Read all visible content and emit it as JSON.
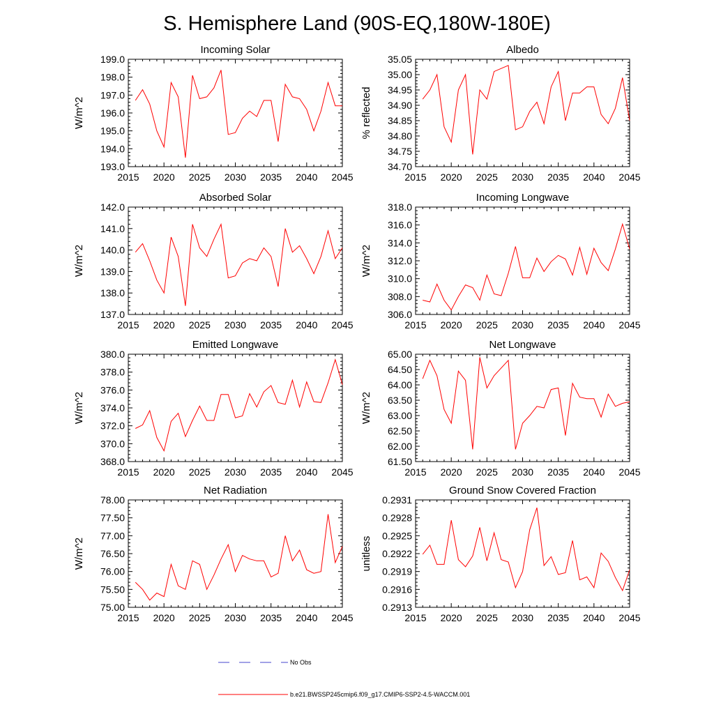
{
  "page": {
    "title": "S. Hemisphere Land (90S-EQ,180W-180E)",
    "line_color": "#ff0000",
    "obs_color": "#4444cc"
  },
  "legend": {
    "items": [
      {
        "label": "No Obs",
        "style": "dashed",
        "color": "#4444cc"
      },
      {
        "label": "b.e21.BWSSP245cmip6.f09_g17.CMIP6-SSP2-4.5-WACCM.001",
        "style": "solid",
        "color": "#ff0000"
      }
    ]
  },
  "chart_data": [
    {
      "type": "line",
      "title": "Incoming Solar",
      "xlabel": "",
      "ylabel": "W/m^2",
      "xlim": [
        2015,
        2045
      ],
      "ylim": [
        193.0,
        199.0
      ],
      "xticks": [
        2015,
        2020,
        2025,
        2030,
        2035,
        2040,
        2045
      ],
      "xtick_labels": [
        "2015",
        "2020",
        "2025",
        "2030",
        "2035",
        "2040",
        "2045"
      ],
      "yticks": [
        193,
        194,
        195,
        196,
        197,
        198,
        199
      ],
      "ytick_labels": [
        "193.0",
        "194.0",
        "195.0",
        "196.0",
        "197.0",
        "198.0",
        "199.0"
      ],
      "series": [
        {
          "name": "b.e21.BWSSP245cmip6.f09_g17.CMIP6-SSP2-4.5-WACCM.001",
          "x": [
            2016,
            2017,
            2018,
            2019,
            2020,
            2021,
            2022,
            2023,
            2024,
            2025,
            2026,
            2027,
            2028,
            2029,
            2030,
            2031,
            2032,
            2033,
            2034,
            2035,
            2036,
            2037,
            2038,
            2039,
            2040,
            2041,
            2042,
            2043,
            2044,
            2045
          ],
          "y": [
            196.7,
            197.3,
            196.5,
            195.0,
            194.1,
            197.7,
            196.9,
            193.5,
            198.1,
            196.8,
            196.9,
            197.4,
            198.4,
            194.8,
            194.9,
            195.7,
            196.1,
            195.8,
            196.7,
            196.7,
            194.4,
            197.6,
            196.9,
            196.8,
            196.2,
            195.0,
            196.1,
            197.7,
            196.4,
            196.4
          ]
        }
      ]
    },
    {
      "type": "line",
      "title": "Albedo",
      "xlabel": "",
      "ylabel": "% reflected",
      "xlim": [
        2015,
        2045
      ],
      "ylim": [
        34.7,
        35.05
      ],
      "xticks": [
        2015,
        2020,
        2025,
        2030,
        2035,
        2040,
        2045
      ],
      "xtick_labels": [
        "2015",
        "2020",
        "2025",
        "2030",
        "2035",
        "2040",
        "2045"
      ],
      "yticks": [
        34.7,
        34.75,
        34.8,
        34.85,
        34.9,
        34.95,
        35.0,
        35.05
      ],
      "ytick_labels": [
        "34.70",
        "34.75",
        "34.80",
        "34.85",
        "34.90",
        "34.95",
        "35.00",
        "35.05"
      ],
      "series": [
        {
          "name": "b.e21.BWSSP245cmip6.f09_g17.CMIP6-SSP2-4.5-WACCM.001",
          "x": [
            2016,
            2017,
            2018,
            2019,
            2020,
            2021,
            2022,
            2023,
            2024,
            2025,
            2026,
            2027,
            2028,
            2029,
            2030,
            2031,
            2032,
            2033,
            2034,
            2035,
            2036,
            2037,
            2038,
            2039,
            2040,
            2041,
            2042,
            2043,
            2044,
            2045
          ],
          "y": [
            34.92,
            34.95,
            35.0,
            34.83,
            34.78,
            34.95,
            35.0,
            34.74,
            34.95,
            34.92,
            35.01,
            35.02,
            35.03,
            34.82,
            34.83,
            34.88,
            34.91,
            34.84,
            34.96,
            35.01,
            34.85,
            34.94,
            34.94,
            34.96,
            34.96,
            34.87,
            34.84,
            34.89,
            34.99,
            34.85
          ]
        }
      ]
    },
    {
      "type": "line",
      "title": "Absorbed Solar",
      "xlabel": "",
      "ylabel": "W/m^2",
      "xlim": [
        2015,
        2045
      ],
      "ylim": [
        137.0,
        142.0
      ],
      "xticks": [
        2015,
        2020,
        2025,
        2030,
        2035,
        2040,
        2045
      ],
      "xtick_labels": [
        "2015",
        "2020",
        "2025",
        "2030",
        "2035",
        "2040",
        "2045"
      ],
      "yticks": [
        137,
        138,
        139,
        140,
        141,
        142
      ],
      "ytick_labels": [
        "137.0",
        "138.0",
        "139.0",
        "140.0",
        "141.0",
        "142.0"
      ],
      "series": [
        {
          "name": "b.e21.BWSSP245cmip6.f09_g17.CMIP6-SSP2-4.5-WACCM.001",
          "x": [
            2016,
            2017,
            2018,
            2019,
            2020,
            2021,
            2022,
            2023,
            2024,
            2025,
            2026,
            2027,
            2028,
            2029,
            2030,
            2031,
            2032,
            2033,
            2034,
            2035,
            2036,
            2037,
            2038,
            2039,
            2040,
            2041,
            2042,
            2043,
            2044,
            2045
          ],
          "y": [
            139.9,
            140.3,
            139.5,
            138.6,
            138.0,
            140.6,
            139.7,
            137.4,
            141.2,
            140.1,
            139.7,
            140.5,
            141.2,
            138.7,
            138.8,
            139.4,
            139.6,
            139.5,
            140.1,
            139.7,
            138.3,
            141.0,
            139.9,
            140.2,
            139.6,
            138.9,
            139.7,
            140.9,
            139.6,
            140.1
          ]
        }
      ]
    },
    {
      "type": "line",
      "title": "Incoming Longwave",
      "xlabel": "",
      "ylabel": "W/m^2",
      "xlim": [
        2015,
        2045
      ],
      "ylim": [
        306.0,
        318.0
      ],
      "xticks": [
        2015,
        2020,
        2025,
        2030,
        2035,
        2040,
        2045
      ],
      "xtick_labels": [
        "2015",
        "2020",
        "2025",
        "2030",
        "2035",
        "2040",
        "2045"
      ],
      "yticks": [
        306,
        308,
        310,
        312,
        314,
        316,
        318
      ],
      "ytick_labels": [
        "306.0",
        "308.0",
        "310.0",
        "312.0",
        "314.0",
        "316.0",
        "318.0"
      ],
      "series": [
        {
          "name": "b.e21.BWSSP245cmip6.f09_g17.CMIP6-SSP2-4.5-WACCM.001",
          "x": [
            2016,
            2017,
            2018,
            2019,
            2020,
            2021,
            2022,
            2023,
            2024,
            2025,
            2026,
            2027,
            2028,
            2029,
            2030,
            2031,
            2032,
            2033,
            2034,
            2035,
            2036,
            2037,
            2038,
            2039,
            2040,
            2041,
            2042,
            2043,
            2044,
            2045
          ],
          "y": [
            307.6,
            307.4,
            309.4,
            307.6,
            306.5,
            308.0,
            309.3,
            309.0,
            307.6,
            310.4,
            308.3,
            308.1,
            310.6,
            313.6,
            310.1,
            310.1,
            312.3,
            310.8,
            311.9,
            312.6,
            312.2,
            310.4,
            313.5,
            310.5,
            313.4,
            311.8,
            310.9,
            313.3,
            316.1,
            313.3
          ]
        }
      ]
    },
    {
      "type": "line",
      "title": "Emitted Longwave",
      "xlabel": "",
      "ylabel": "W/m^2",
      "xlim": [
        2015,
        2045
      ],
      "ylim": [
        368.0,
        380.0
      ],
      "xticks": [
        2015,
        2020,
        2025,
        2030,
        2035,
        2040,
        2045
      ],
      "xtick_labels": [
        "2015",
        "2020",
        "2025",
        "2030",
        "2035",
        "2040",
        "2045"
      ],
      "yticks": [
        368,
        370,
        372,
        374,
        376,
        378,
        380
      ],
      "ytick_labels": [
        "368.0",
        "370.0",
        "372.0",
        "374.0",
        "376.0",
        "378.0",
        "380.0"
      ],
      "series": [
        {
          "name": "b.e21.BWSSP245cmip6.f09_g17.CMIP6-SSP2-4.5-WACCM.001",
          "x": [
            2016,
            2017,
            2018,
            2019,
            2020,
            2021,
            2022,
            2023,
            2024,
            2025,
            2026,
            2027,
            2028,
            2029,
            2030,
            2031,
            2032,
            2033,
            2034,
            2035,
            2036,
            2037,
            2038,
            2039,
            2040,
            2041,
            2042,
            2043,
            2044,
            2045
          ],
          "y": [
            371.7,
            372.1,
            373.7,
            370.7,
            369.2,
            372.5,
            373.4,
            370.8,
            372.6,
            374.2,
            372.6,
            372.6,
            375.5,
            375.5,
            372.9,
            373.1,
            375.6,
            374.1,
            375.8,
            376.5,
            374.6,
            374.4,
            377.1,
            374.1,
            376.9,
            374.7,
            374.6,
            376.8,
            379.4,
            376.6
          ]
        }
      ]
    },
    {
      "type": "line",
      "title": "Net Longwave",
      "xlabel": "",
      "ylabel": "W/m^2",
      "xlim": [
        2015,
        2045
      ],
      "ylim": [
        61.5,
        65.0
      ],
      "xticks": [
        2015,
        2020,
        2025,
        2030,
        2035,
        2040,
        2045
      ],
      "xtick_labels": [
        "2015",
        "2020",
        "2025",
        "2030",
        "2035",
        "2040",
        "2045"
      ],
      "yticks": [
        61.5,
        62.0,
        62.5,
        63.0,
        63.5,
        64.0,
        64.5,
        65.0
      ],
      "ytick_labels": [
        "61.50",
        "62.00",
        "62.50",
        "63.00",
        "63.50",
        "64.00",
        "64.50",
        "65.00"
      ],
      "series": [
        {
          "name": "b.e21.BWSSP245cmip6.f09_g17.CMIP6-SSP2-4.5-WACCM.001",
          "x": [
            2016,
            2017,
            2018,
            2019,
            2020,
            2021,
            2022,
            2023,
            2024,
            2025,
            2026,
            2027,
            2028,
            2029,
            2030,
            2031,
            2032,
            2033,
            2034,
            2035,
            2036,
            2037,
            2038,
            2039,
            2040,
            2041,
            2042,
            2043,
            2044,
            2045
          ],
          "y": [
            64.2,
            64.8,
            64.3,
            63.2,
            62.75,
            64.45,
            64.15,
            61.9,
            64.9,
            63.9,
            64.3,
            64.55,
            64.8,
            61.9,
            62.75,
            63.0,
            63.3,
            63.25,
            63.85,
            63.9,
            62.35,
            64.05,
            63.6,
            63.55,
            63.55,
            62.95,
            63.7,
            63.3,
            63.4,
            63.45
          ]
        }
      ]
    },
    {
      "type": "line",
      "title": "Net Radiation",
      "xlabel": "",
      "ylabel": "W/m^2",
      "xlim": [
        2015,
        2045
      ],
      "ylim": [
        75.0,
        78.0
      ],
      "xticks": [
        2015,
        2020,
        2025,
        2030,
        2035,
        2040,
        2045
      ],
      "xtick_labels": [
        "2015",
        "2020",
        "2025",
        "2030",
        "2035",
        "2040",
        "2045"
      ],
      "yticks": [
        75.0,
        75.5,
        76.0,
        76.5,
        77.0,
        77.5,
        78.0
      ],
      "ytick_labels": [
        "75.00",
        "75.50",
        "76.00",
        "76.50",
        "77.00",
        "77.50",
        "78.00"
      ],
      "series": [
        {
          "name": "b.e21.BWSSP245cmip6.f09_g17.CMIP6-SSP2-4.5-WACCM.001",
          "x": [
            2016,
            2017,
            2018,
            2019,
            2020,
            2021,
            2022,
            2023,
            2024,
            2025,
            2026,
            2027,
            2028,
            2029,
            2030,
            2031,
            2032,
            2033,
            2034,
            2035,
            2036,
            2037,
            2038,
            2039,
            2040,
            2041,
            2042,
            2043,
            2044,
            2045
          ],
          "y": [
            75.7,
            75.5,
            75.2,
            75.4,
            75.3,
            76.2,
            75.6,
            75.5,
            76.3,
            76.2,
            75.5,
            75.9,
            76.35,
            76.75,
            76.0,
            76.45,
            76.35,
            76.3,
            76.3,
            75.85,
            75.95,
            77.0,
            76.3,
            76.6,
            76.05,
            75.95,
            76.0,
            77.6,
            76.25,
            76.7
          ]
        }
      ]
    },
    {
      "type": "line",
      "title": "Ground Snow Covered Fraction",
      "xlabel": "",
      "ylabel": "unitless",
      "xlim": [
        2015,
        2045
      ],
      "ylim": [
        0.2913,
        0.2931
      ],
      "xticks": [
        2015,
        2020,
        2025,
        2030,
        2035,
        2040,
        2045
      ],
      "xtick_labels": [
        "2015",
        "2020",
        "2025",
        "2030",
        "2035",
        "2040",
        "2045"
      ],
      "yticks": [
        0.2913,
        0.2916,
        0.2919,
        0.2922,
        0.2925,
        0.2928,
        0.2931
      ],
      "ytick_labels": [
        "0.2913",
        "0.2916",
        "0.2919",
        "0.2922",
        "0.2925",
        "0.2928",
        "0.2931"
      ],
      "series": [
        {
          "name": "b.e21.BWSSP245cmip6.f09_g17.CMIP6-SSP2-4.5-WACCM.001",
          "x": [
            2016,
            2017,
            2018,
            2019,
            2020,
            2021,
            2022,
            2023,
            2024,
            2025,
            2026,
            2027,
            2028,
            2029,
            2030,
            2031,
            2032,
            2033,
            2034,
            2035,
            2036,
            2037,
            2038,
            2039,
            2040,
            2041,
            2042,
            2043,
            2044,
            2045
          ],
          "y": [
            0.29219,
            0.29234,
            0.29202,
            0.29202,
            0.29276,
            0.2921,
            0.29198,
            0.29216,
            0.29264,
            0.29208,
            0.29255,
            0.2921,
            0.29206,
            0.29163,
            0.2919,
            0.2926,
            0.29297,
            0.292,
            0.29215,
            0.29185,
            0.29188,
            0.29242,
            0.29176,
            0.29181,
            0.29163,
            0.29221,
            0.29207,
            0.2918,
            0.29158,
            0.29193
          ]
        }
      ]
    }
  ]
}
